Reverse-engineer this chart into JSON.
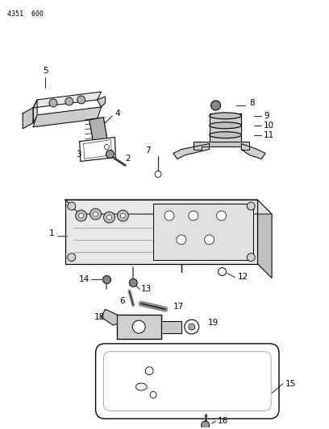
{
  "title": "4351  600",
  "background_color": "#ffffff",
  "line_color": "#000000",
  "figsize": [
    4.08,
    5.33
  ],
  "dpi": 100
}
